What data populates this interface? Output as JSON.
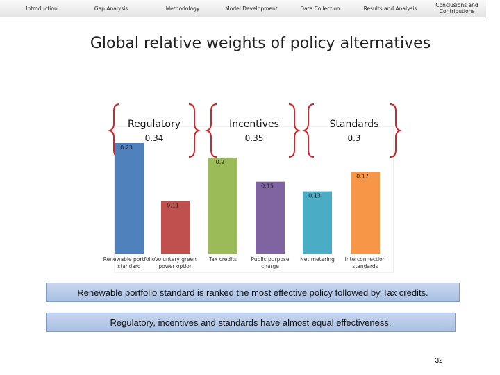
{
  "nav": [
    "Introduction",
    "Gap Analysis",
    "Methodology",
    "Model Development",
    "Data Collection",
    "Results and Analysis",
    "Conclusions and Contributions"
  ],
  "title": "Global relative weights of policy alternatives",
  "groups": [
    {
      "label": "Regulatory",
      "weight": 0.34
    },
    {
      "label": "Incentives",
      "weight": 0.35
    },
    {
      "label": "Standards",
      "weight": 0.3
    }
  ],
  "chart_data": {
    "type": "bar",
    "categories": [
      "Renewable portfolio standard",
      "Voluntary green power option",
      "Tax credits",
      "Public purpose charge",
      "Net metering",
      "Interconnection standards"
    ],
    "values": [
      0.23,
      0.11,
      0.2,
      0.15,
      0.13,
      0.17
    ],
    "colors": [
      "#4f81bd",
      "#c0504d",
      "#9bbb59",
      "#8064a2",
      "#4bacc6",
      "#f79646"
    ]
  },
  "notes": [
    "Renewable portfolio standard is ranked the most effective policy followed by Tax credits.",
    "Regulatory, incentives and standards have almost equal effectiveness."
  ],
  "page_number": "32"
}
